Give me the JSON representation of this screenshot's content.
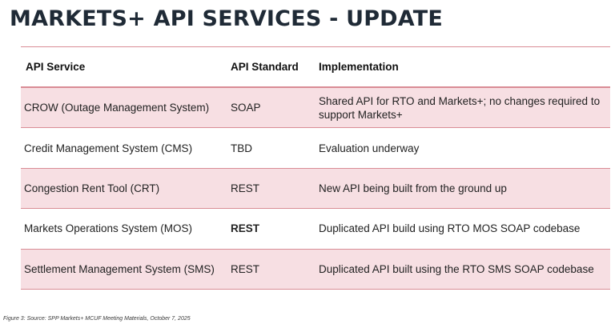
{
  "title": "MARKETS+ API SERVICES - UPDATE",
  "table": {
    "headers": [
      "API Service",
      "API Standard",
      "Implementation"
    ],
    "rows": [
      {
        "service": "CROW (Outage Management System)",
        "standard": "SOAP",
        "implementation": "Shared API for RTO and Markets+; no changes required to support Markets+"
      },
      {
        "service": "Credit Management System (CMS)",
        "standard": "TBD",
        "implementation": "Evaluation underway"
      },
      {
        "service": "Congestion Rent Tool (CRT)",
        "standard": "REST",
        "implementation": "New API being built from the ground up"
      },
      {
        "service": "Markets Operations System (MOS)",
        "standard": "REST",
        "implementation": "Duplicated API build using RTO MOS SOAP codebase"
      },
      {
        "service": "Settlement Management System (SMS)",
        "standard": "REST",
        "implementation": "Duplicated API built using the RTO SMS SOAP codebase"
      }
    ]
  },
  "caption": "Figure 3: Source: SPP Markets+ MCUF Meeting Materials, October 7, 2025",
  "colors": {
    "title": "#1f2a36",
    "row_shade": "#f7dfe3",
    "rule": "#d98c95"
  }
}
